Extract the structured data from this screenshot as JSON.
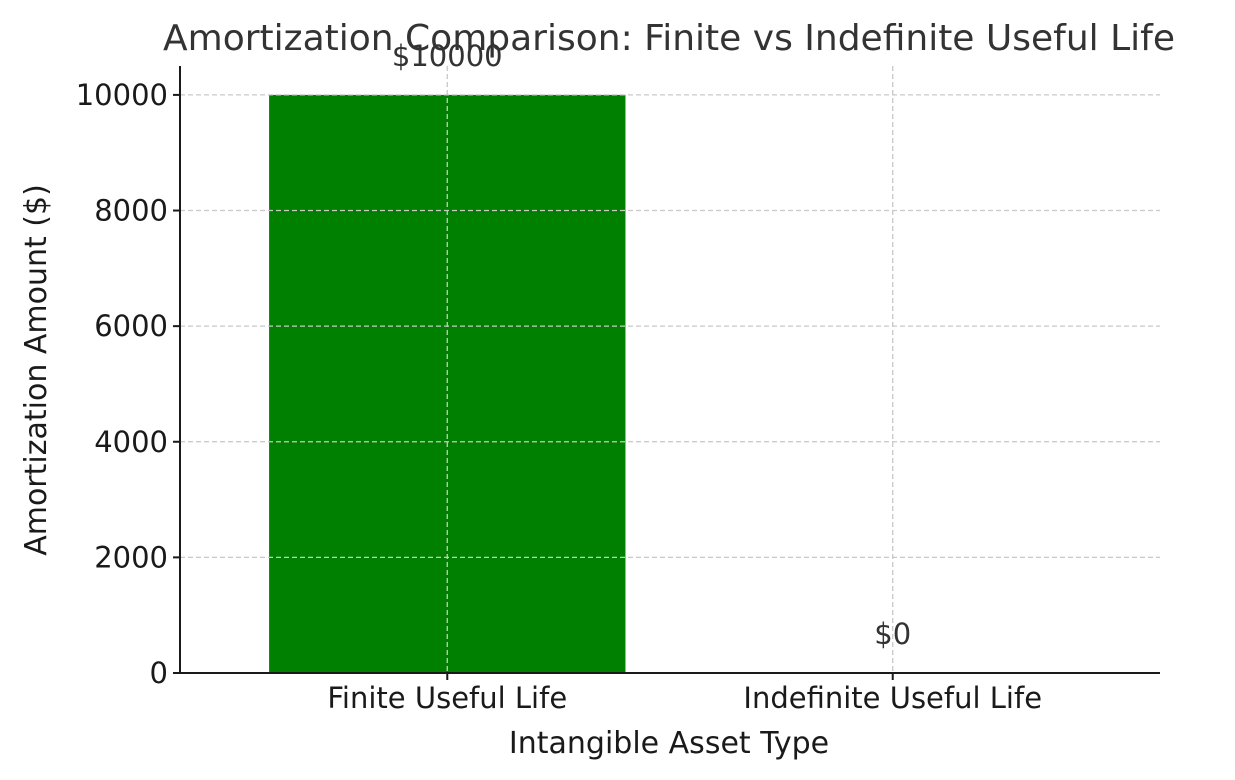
{
  "chart_data": {
    "type": "bar",
    "title": "Amortization Comparison: Finite vs Indefinite Useful Life",
    "xlabel": "Intangible Asset Type",
    "ylabel": "Amortization Amount ($)",
    "categories": [
      "Finite Useful Life",
      "Indefinite Useful Life"
    ],
    "values": [
      10000,
      0
    ],
    "data_labels": [
      "$10000",
      "$0"
    ],
    "bar_colors": [
      "#008000",
      "#ff0000"
    ],
    "ylim": [
      0,
      10500
    ],
    "yticks": [
      0,
      2000,
      4000,
      6000,
      8000,
      10000
    ],
    "grid": true
  }
}
